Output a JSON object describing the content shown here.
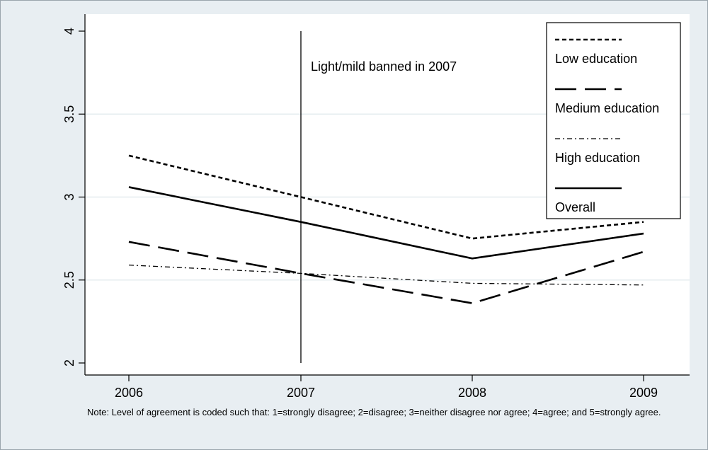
{
  "chart_data": {
    "type": "line",
    "title": "",
    "xlabel": "",
    "ylabel": "",
    "x": [
      2006,
      2007,
      2008,
      2009
    ],
    "x_tick_labels": [
      "2006",
      "2007",
      "2008",
      "2009"
    ],
    "ylim": [
      2,
      4
    ],
    "y_ticks": [
      2,
      2.5,
      3,
      3.5,
      4
    ],
    "y_tick_labels": [
      "2",
      "2.5",
      "3",
      "3.5",
      "4"
    ],
    "grid": true,
    "legend_position": "top-right",
    "series": [
      {
        "name": "Low education",
        "style": "dotted",
        "values": [
          3.25,
          3.0,
          2.75,
          2.85
        ]
      },
      {
        "name": "Medium education",
        "style": "long-dash",
        "values": [
          2.73,
          2.54,
          2.36,
          2.67
        ]
      },
      {
        "name": "High education",
        "style": "dash-dot",
        "values": [
          2.59,
          2.54,
          2.48,
          2.47
        ]
      },
      {
        "name": "Overall",
        "style": "solid",
        "values": [
          3.06,
          2.85,
          2.63,
          2.78
        ]
      }
    ],
    "vline": {
      "x": 2007,
      "label": "Light/mild banned in 2007"
    },
    "note": "Note: Level of agreement is coded such that: 1=strongly disagree; 2=disagree; 3=neither disagree nor agree; 4=agree; and 5=strongly agree."
  },
  "colors": {
    "outer_background": "#e8eef2",
    "plot_background": "#ffffff",
    "gridline": "#e4ecef",
    "line": "#000000"
  }
}
